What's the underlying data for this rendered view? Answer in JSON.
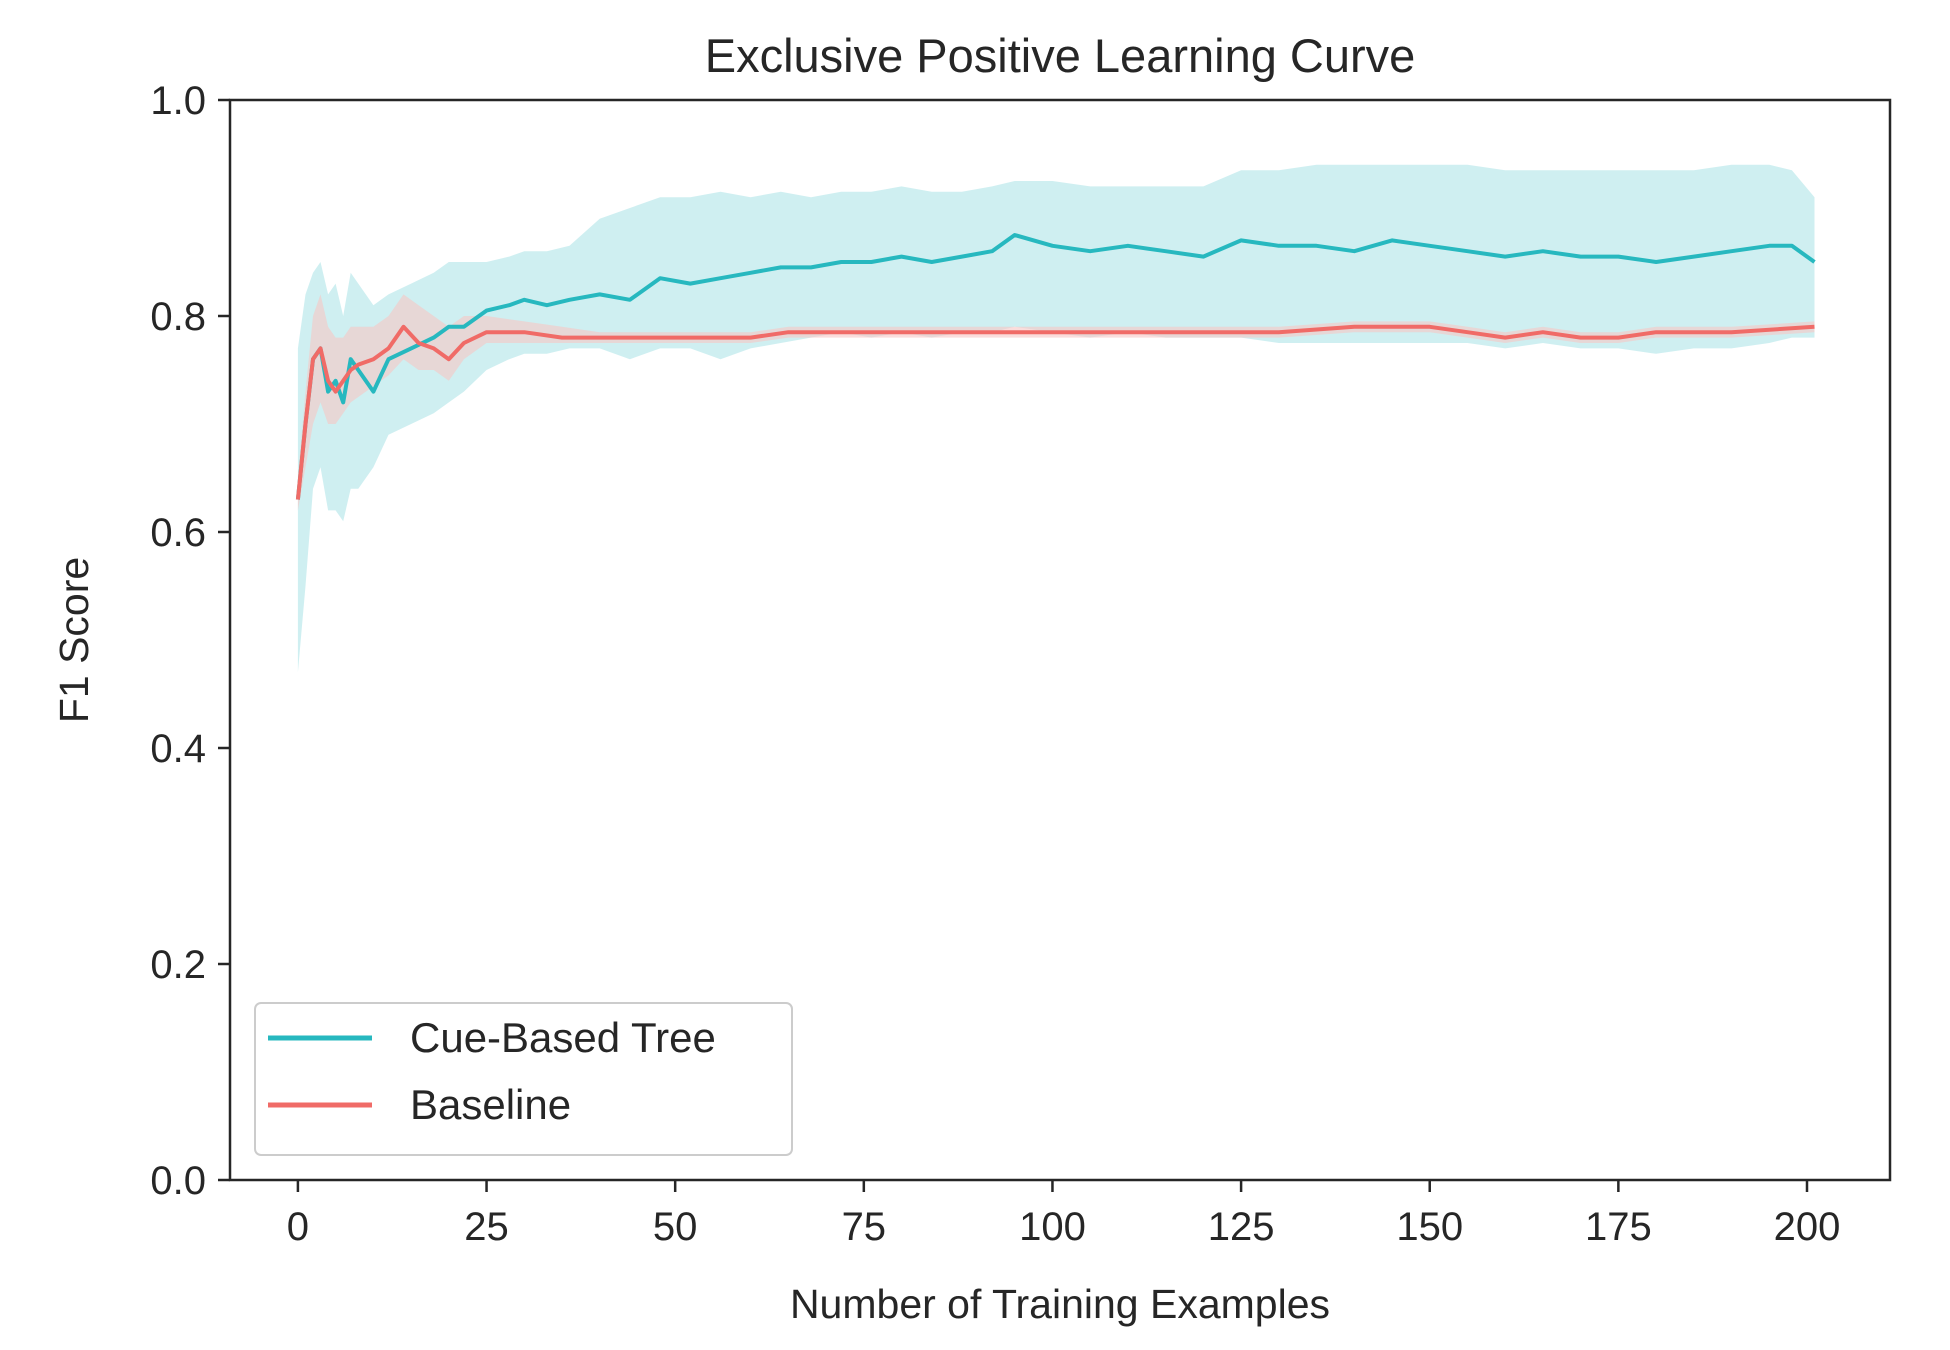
{
  "chart_data": {
    "type": "line",
    "title": "Exclusive Positive Learning Curve",
    "xlabel": "Number of Training Examples",
    "ylabel": "F1 Score",
    "xlim": [
      -9,
      211
    ],
    "ylim": [
      0.0,
      1.0
    ],
    "xticks": [
      0,
      25,
      50,
      75,
      100,
      125,
      150,
      175,
      200
    ],
    "yticks": [
      0.0,
      0.2,
      0.4,
      0.6,
      0.8,
      1.0
    ],
    "ytick_labels": [
      "0.0",
      "0.2",
      "0.4",
      "0.6",
      "0.8",
      "1.0"
    ],
    "grid": false,
    "legend_position": "lower-left",
    "series": [
      {
        "name": "Cue-Based Tree",
        "color": "#27b8bf",
        "band_color": "#bfeaec",
        "x": [
          0,
          1,
          2,
          3,
          4,
          5,
          6,
          7,
          8,
          10,
          12,
          15,
          18,
          20,
          22,
          25,
          28,
          30,
          33,
          36,
          40,
          44,
          48,
          52,
          56,
          60,
          64,
          68,
          72,
          76,
          80,
          84,
          88,
          92,
          95,
          100,
          105,
          110,
          115,
          120,
          125,
          130,
          135,
          140,
          145,
          150,
          155,
          160,
          165,
          170,
          175,
          180,
          185,
          190,
          195,
          198,
          201
        ],
        "y": [
          0.63,
          0.7,
          0.76,
          0.77,
          0.73,
          0.74,
          0.72,
          0.76,
          0.75,
          0.73,
          0.76,
          0.77,
          0.78,
          0.79,
          0.79,
          0.805,
          0.81,
          0.815,
          0.81,
          0.815,
          0.82,
          0.815,
          0.835,
          0.83,
          0.835,
          0.84,
          0.845,
          0.845,
          0.85,
          0.85,
          0.855,
          0.85,
          0.855,
          0.86,
          0.875,
          0.865,
          0.86,
          0.865,
          0.86,
          0.855,
          0.87,
          0.865,
          0.865,
          0.86,
          0.87,
          0.865,
          0.86,
          0.855,
          0.86,
          0.855,
          0.855,
          0.85,
          0.855,
          0.86,
          0.865,
          0.865,
          0.85
        ],
        "lower": [
          0.47,
          0.55,
          0.64,
          0.66,
          0.62,
          0.62,
          0.61,
          0.64,
          0.64,
          0.66,
          0.69,
          0.7,
          0.71,
          0.72,
          0.73,
          0.75,
          0.76,
          0.765,
          0.765,
          0.77,
          0.77,
          0.76,
          0.77,
          0.77,
          0.76,
          0.77,
          0.775,
          0.78,
          0.785,
          0.78,
          0.785,
          0.78,
          0.785,
          0.785,
          0.79,
          0.785,
          0.78,
          0.785,
          0.78,
          0.78,
          0.78,
          0.775,
          0.775,
          0.775,
          0.775,
          0.775,
          0.775,
          0.77,
          0.775,
          0.77,
          0.77,
          0.765,
          0.77,
          0.77,
          0.775,
          0.78,
          0.78
        ],
        "upper": [
          0.77,
          0.82,
          0.84,
          0.85,
          0.82,
          0.83,
          0.8,
          0.84,
          0.83,
          0.81,
          0.82,
          0.83,
          0.84,
          0.85,
          0.85,
          0.85,
          0.855,
          0.86,
          0.86,
          0.865,
          0.89,
          0.9,
          0.91,
          0.91,
          0.915,
          0.91,
          0.915,
          0.91,
          0.915,
          0.915,
          0.92,
          0.915,
          0.915,
          0.92,
          0.925,
          0.925,
          0.92,
          0.92,
          0.92,
          0.92,
          0.935,
          0.935,
          0.94,
          0.94,
          0.94,
          0.94,
          0.94,
          0.935,
          0.935,
          0.935,
          0.935,
          0.935,
          0.935,
          0.94,
          0.94,
          0.935,
          0.91
        ]
      },
      {
        "name": "Baseline",
        "color": "#f06b67",
        "band_color": "#f6c6c4",
        "x": [
          0,
          1,
          2,
          3,
          4,
          5,
          6,
          7,
          8,
          10,
          12,
          14,
          16,
          18,
          20,
          22,
          25,
          30,
          35,
          40,
          50,
          60,
          65,
          70,
          80,
          90,
          100,
          110,
          120,
          125,
          130,
          140,
          150,
          155,
          160,
          165,
          170,
          175,
          180,
          190,
          201
        ],
        "y": [
          0.63,
          0.7,
          0.76,
          0.77,
          0.74,
          0.73,
          0.74,
          0.75,
          0.755,
          0.76,
          0.77,
          0.79,
          0.775,
          0.77,
          0.76,
          0.775,
          0.785,
          0.785,
          0.78,
          0.78,
          0.78,
          0.78,
          0.785,
          0.785,
          0.785,
          0.785,
          0.785,
          0.785,
          0.785,
          0.785,
          0.785,
          0.79,
          0.79,
          0.785,
          0.78,
          0.785,
          0.78,
          0.78,
          0.785,
          0.785,
          0.79
        ],
        "lower": [
          0.62,
          0.66,
          0.7,
          0.72,
          0.7,
          0.7,
          0.71,
          0.72,
          0.725,
          0.735,
          0.745,
          0.76,
          0.75,
          0.75,
          0.74,
          0.76,
          0.775,
          0.775,
          0.775,
          0.775,
          0.775,
          0.775,
          0.78,
          0.78,
          0.78,
          0.78,
          0.78,
          0.78,
          0.78,
          0.78,
          0.78,
          0.785,
          0.785,
          0.78,
          0.775,
          0.78,
          0.775,
          0.775,
          0.78,
          0.78,
          0.785
        ],
        "upper": [
          0.65,
          0.73,
          0.8,
          0.82,
          0.79,
          0.78,
          0.78,
          0.79,
          0.79,
          0.79,
          0.8,
          0.82,
          0.81,
          0.8,
          0.79,
          0.8,
          0.8,
          0.795,
          0.79,
          0.785,
          0.785,
          0.785,
          0.79,
          0.79,
          0.79,
          0.79,
          0.79,
          0.79,
          0.79,
          0.79,
          0.79,
          0.795,
          0.795,
          0.79,
          0.785,
          0.79,
          0.785,
          0.785,
          0.79,
          0.79,
          0.795
        ]
      }
    ]
  }
}
